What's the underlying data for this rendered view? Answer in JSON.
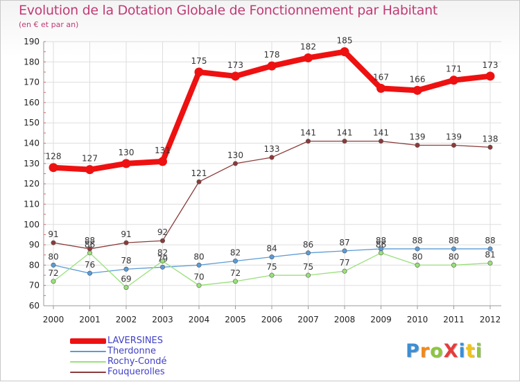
{
  "title": "Evolution de la Dotation Globale de Fonctionnement par Habitant",
  "subtitle": "(en € et par an)",
  "logo": {
    "text": "ProXiti",
    "letters": [
      {
        "ch": "P",
        "color": "#3a8fd6"
      },
      {
        "ch": "r",
        "color": "#f08a1a"
      },
      {
        "ch": "o",
        "color": "#8cc63f"
      },
      {
        "ch": "X",
        "color": "#e63c3c"
      },
      {
        "ch": "i",
        "color": "#3a8fd6"
      },
      {
        "ch": "t",
        "color": "#f0c419"
      },
      {
        "ch": "i",
        "color": "#8cc63f"
      }
    ]
  },
  "chart_data": {
    "type": "line",
    "title": "Evolution de la Dotation Globale de Fonctionnement par Habitant",
    "ylabel": "(en € et par an)",
    "xlabel": "",
    "ylim": [
      60,
      190
    ],
    "yticks": [
      60,
      70,
      80,
      90,
      100,
      110,
      120,
      130,
      140,
      150,
      160,
      170,
      180,
      190
    ],
    "grid": true,
    "legend": "bottom-left",
    "categories": [
      "2000",
      "2001",
      "2002",
      "2003",
      "2004",
      "2005",
      "2006",
      "2007",
      "2008",
      "2009",
      "2010",
      "2011",
      "2012"
    ],
    "series": [
      {
        "name": "LAVERSINES",
        "color": "#ee1111",
        "emphasis": true,
        "values": [
          128,
          127,
          130,
          131,
          175,
          173,
          178,
          182,
          185,
          167,
          166,
          171,
          173
        ]
      },
      {
        "name": "Therdonne",
        "color": "#5b9bd5",
        "emphasis": false,
        "values": [
          80,
          76,
          78,
          79,
          80,
          82,
          84,
          86,
          87,
          88,
          88,
          88,
          88
        ]
      },
      {
        "name": "Rochy-Condé",
        "color": "#99e07a",
        "emphasis": false,
        "values": [
          72,
          86,
          69,
          82,
          70,
          72,
          75,
          75,
          77,
          86,
          80,
          80,
          81
        ]
      },
      {
        "name": "Fouquerolles",
        "color": "#8b3a3a",
        "emphasis": false,
        "values": [
          91,
          88,
          91,
          92,
          121,
          130,
          133,
          141,
          141,
          141,
          139,
          139,
          138
        ]
      }
    ]
  }
}
